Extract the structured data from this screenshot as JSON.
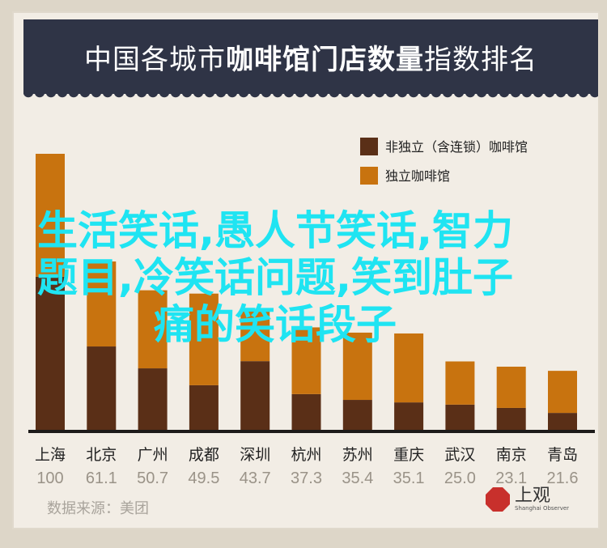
{
  "chart_data": {
    "type": "bar",
    "stacked": true,
    "title": "中国各城市咖啡馆门店数量指数排名",
    "title_parts": [
      "中国各城市",
      "咖啡馆门店数量",
      "指数排名"
    ],
    "categories": [
      "上海",
      "北京",
      "广州",
      "成都",
      "深圳",
      "杭州",
      "苏州",
      "重庆",
      "武汉",
      "南京",
      "青岛"
    ],
    "totals": [
      100,
      61.1,
      50.7,
      49.5,
      43.7,
      37.3,
      35.4,
      35.1,
      25.0,
      23.1,
      21.6
    ],
    "total_labels": [
      "100",
      "61.1",
      "50.7",
      "49.5",
      "43.7",
      "37.3",
      "35.4",
      "35.1",
      "25.0",
      "23.1",
      "21.6"
    ],
    "series": [
      {
        "name": "非独立（含连锁）咖啡馆",
        "color": "#5a2f17",
        "values": [
          55.6,
          30.4,
          22.5,
          16.4,
          25.1,
          13.2,
          11.1,
          10.2,
          9.4,
          8.2,
          6.4
        ]
      },
      {
        "name": "独立咖啡馆",
        "color": "#c8730f",
        "values": [
          44.4,
          30.7,
          28.2,
          33.1,
          18.6,
          24.1,
          24.3,
          24.9,
          15.6,
          14.9,
          15.2
        ]
      }
    ],
    "ylim": [
      0,
      100
    ],
    "legend": "top-right",
    "grid": false
  },
  "source": "数据来源：美团",
  "logo": {
    "name": "上观",
    "sub": "Shanghai Observer"
  },
  "overlay_text": [
    "生活笑话,愚人节笑话,智力",
    "题目,冷笑话问题,笑到肚子",
    "痛的笑话段子"
  ]
}
